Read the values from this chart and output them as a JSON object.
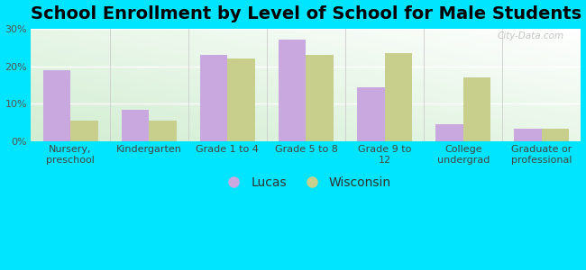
{
  "title": "School Enrollment by Level of School for Male Students",
  "categories": [
    "Nursery,\npreschool",
    "Kindergarten",
    "Grade 1 to 4",
    "Grade 5 to 8",
    "Grade 9 to\n12",
    "College\nundergrad",
    "Graduate or\nprofessional"
  ],
  "lucas_values": [
    19,
    8.5,
    23,
    27,
    14.5,
    4.5,
    3.5
  ],
  "wisconsin_values": [
    5.5,
    5.5,
    22,
    23,
    23.5,
    17,
    3.5
  ],
  "lucas_color": "#c9a8e0",
  "wisconsin_color": "#c8cf8c",
  "background_color": "#00e5ff",
  "ylim": [
    0,
    30
  ],
  "yticks": [
    0,
    10,
    20,
    30
  ],
  "ytick_labels": [
    "0%",
    "10%",
    "20%",
    "30%"
  ],
  "bar_width": 0.35,
  "legend_labels": [
    "Lucas",
    "Wisconsin"
  ],
  "title_fontsize": 14,
  "tick_fontsize": 8,
  "legend_fontsize": 10,
  "grid_color": "#e0e0e0",
  "watermark": "City-Data.com"
}
